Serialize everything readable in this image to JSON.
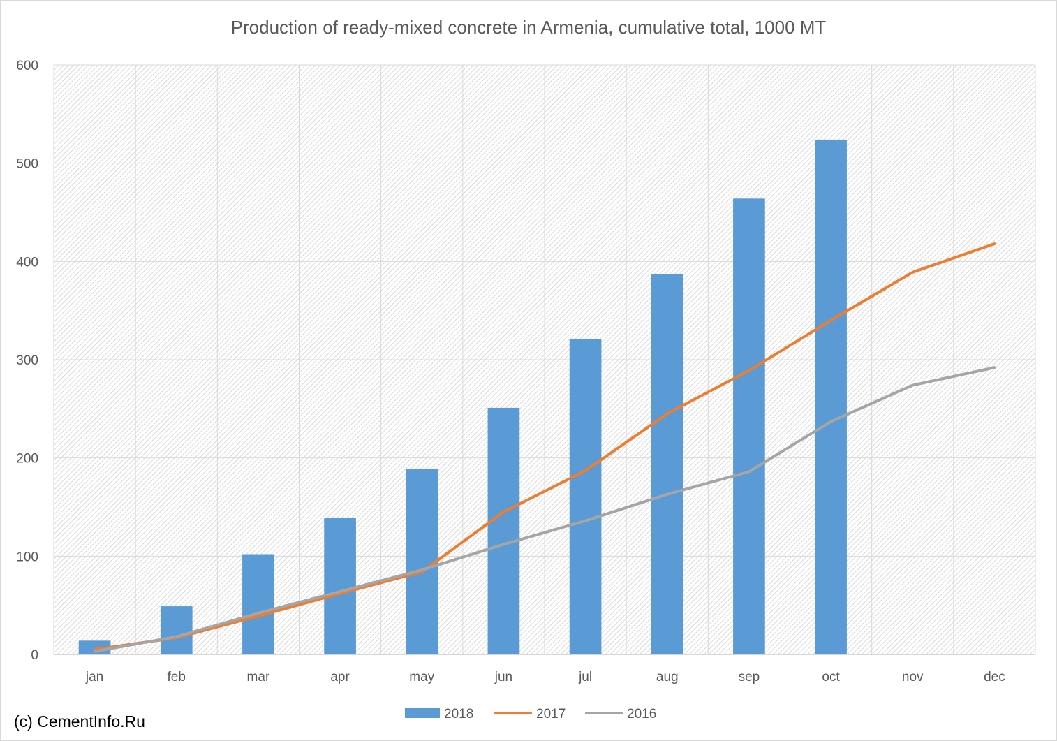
{
  "chart_data": {
    "type": "bar",
    "title": "Production of ready-mixed concrete in Armenia, cumulative total, 1000 MT",
    "xlabel": "",
    "ylabel": "",
    "categories": [
      "jan",
      "feb",
      "mar",
      "apr",
      "may",
      "jun",
      "jul",
      "aug",
      "sep",
      "oct",
      "nov",
      "dec"
    ],
    "ylim": [
      0,
      600
    ],
    "yticks": [
      0,
      100,
      200,
      300,
      400,
      500,
      600
    ],
    "grid": true,
    "legend_position": "bottom",
    "series": [
      {
        "name": "2018",
        "type": "bar",
        "color": "#5b9bd5",
        "values": [
          14,
          49,
          102,
          139,
          189,
          251,
          321,
          387,
          464,
          524,
          null,
          null
        ]
      },
      {
        "name": "2017",
        "type": "line",
        "color": "#ed7d31",
        "values": [
          5,
          17,
          39,
          62,
          84,
          145,
          187,
          245,
          289,
          340,
          389,
          418
        ]
      },
      {
        "name": "2016",
        "type": "line",
        "color": "#a5a5a5",
        "values": [
          3,
          18,
          42,
          64,
          86,
          112,
          136,
          163,
          186,
          237,
          274,
          292
        ]
      }
    ]
  },
  "footer": {
    "copyright": "(c) CementInfo.Ru"
  }
}
